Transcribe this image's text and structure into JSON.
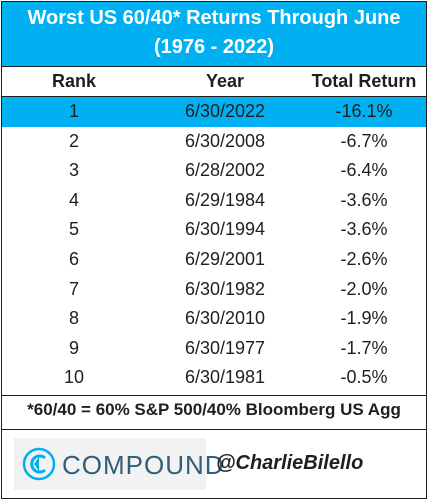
{
  "title": {
    "line1": "Worst US 60/40* Returns Through June",
    "line2": "(1976 - 2022)"
  },
  "chart_data": {
    "type": "table",
    "columns": [
      "Rank",
      "Year",
      "Total Return"
    ],
    "rows": [
      {
        "rank": "1",
        "year": "6/30/2022",
        "total_return": "-16.1%"
      },
      {
        "rank": "2",
        "year": "6/30/2008",
        "total_return": "-6.7%"
      },
      {
        "rank": "3",
        "year": "6/28/2002",
        "total_return": "-6.4%"
      },
      {
        "rank": "4",
        "year": "6/29/1984",
        "total_return": "-3.6%"
      },
      {
        "rank": "5",
        "year": "6/30/1994",
        "total_return": "-3.6%"
      },
      {
        "rank": "6",
        "year": "6/29/2001",
        "total_return": "-2.6%"
      },
      {
        "rank": "7",
        "year": "6/30/1982",
        "total_return": "-2.0%"
      },
      {
        "rank": "8",
        "year": "6/30/2010",
        "total_return": "-1.9%"
      },
      {
        "rank": "9",
        "year": "6/30/1977",
        "total_return": "-1.7%"
      },
      {
        "rank": "10",
        "year": "6/30/1981",
        "total_return": "-0.5%"
      }
    ],
    "highlight_rank": "1"
  },
  "footnote": "*60/40 = 60% S&P 500/40% Bloomberg US Agg",
  "branding": {
    "logo_text": "COMPOUND",
    "handle": "@CharlieBilello"
  },
  "colors": {
    "accent": "#00b0f0",
    "text": "#1f1f1f",
    "logo": "#2f5f7a"
  }
}
